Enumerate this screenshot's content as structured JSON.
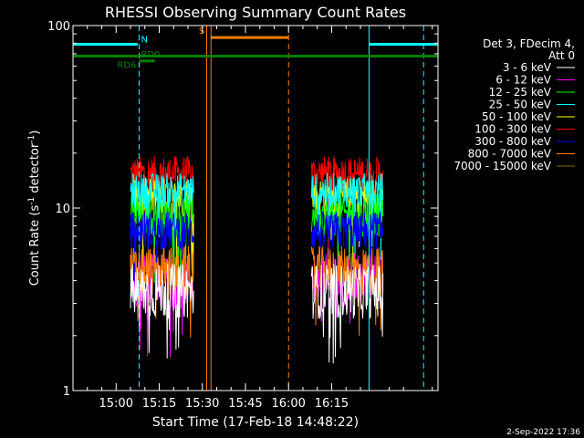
{
  "chart_data": {
    "type": "line",
    "title": "RHESSI Observing Summary Count Rates",
    "xlabel": "Start Time (17-Feb-18 14:48:22)",
    "ylabel_main": "Count Rate (s",
    "ylabel_sup1": "-1",
    "ylabel_mid": " detector",
    "ylabel_sup2": "-1",
    "ylabel_end": ")",
    "y_scale": "log",
    "ylim": [
      1,
      100
    ],
    "xlim_minutes": [
      -15,
      112
    ],
    "x_tick_labels": [
      "15:00",
      "15:15",
      "15:30",
      "15:45",
      "16:00",
      "16:15"
    ],
    "x_tick_minutes": [
      0,
      15,
      30,
      45,
      60,
      75
    ],
    "y_tick_labels": [
      "1",
      "10",
      "100"
    ],
    "y_tick_values": [
      1,
      10,
      100
    ],
    "legend_header": [
      "Det 3, FDecim 4,",
      "Att 0"
    ],
    "legend": [
      {
        "label": "3 - 6 keV",
        "color": "#ffffff"
      },
      {
        "label": "6 - 12 keV",
        "color": "#ff00ff"
      },
      {
        "label": "12 - 25 keV",
        "color": "#00ff00"
      },
      {
        "label": "25 - 50 keV",
        "color": "#00ffff"
      },
      {
        "label": "50 - 100 keV",
        "color": "#ffff00"
      },
      {
        "label": "100 - 300 keV",
        "color": "#ff0000"
      },
      {
        "label": "300 - 800 keV",
        "color": "#0000ff"
      },
      {
        "label": "800 - 7000 keV",
        "color": "#ff8000"
      },
      {
        "label": "7000 - 15000 keV",
        "color": "#8b6914"
      }
    ],
    "series": [
      {
        "color": "#ff0000",
        "segments": [
          [
            5,
            27,
            15.5
          ],
          [
            68,
            93,
            15.5
          ]
        ],
        "spread": 0.22
      },
      {
        "color": "#ffff00",
        "segments": [
          [
            5,
            27,
            11.5
          ],
          [
            68,
            93,
            11.5
          ]
        ],
        "spread": 0.25
      },
      {
        "color": "#00ff00",
        "segments": [
          [
            5,
            27,
            9.2
          ],
          [
            68,
            93,
            9.2
          ]
        ],
        "spread": 0.28
      },
      {
        "color": "#00ffff",
        "segments": [
          [
            5,
            27,
            12.5
          ],
          [
            68,
            93,
            12.5
          ]
        ],
        "spread": 0.22
      },
      {
        "color": "#0000ff",
        "segments": [
          [
            5,
            27,
            7.5
          ],
          [
            68,
            93,
            7.5
          ]
        ],
        "spread": 0.25
      },
      {
        "color": "#ff00ff",
        "segments": [
          [
            5,
            27,
            4.0
          ],
          [
            68,
            93,
            4.0
          ]
        ],
        "spread": 0.35
      },
      {
        "color": "#ff8000",
        "segments": [
          [
            5,
            27,
            4.5
          ],
          [
            68,
            93,
            4.5
          ]
        ],
        "spread": 0.32
      },
      {
        "color": "#ffffff",
        "segments": [
          [
            5,
            27,
            3.5
          ],
          [
            68,
            93,
            3.5
          ]
        ],
        "spread": 0.35
      }
    ],
    "flag_bars": [
      {
        "label": "",
        "color": "#00ffff",
        "start": -15,
        "end": 7.5,
        "level": 79
      },
      {
        "label": "",
        "color": "#00ffff",
        "start": 88,
        "end": 112,
        "level": 79
      },
      {
        "label": "N",
        "color": "#00ffff",
        "start": 8,
        "end": 8,
        "level": 79
      },
      {
        "label": "S",
        "color": "#ff8000",
        "start": 33,
        "end": 60,
        "level": 86
      },
      {
        "label": "RD0",
        "color": "#008000",
        "start": 8,
        "end": 13.5,
        "level": 64
      },
      {
        "label": "RD6",
        "color": "#008000",
        "start": -15,
        "end": 112,
        "level": 68
      }
    ],
    "vertical_lines": [
      {
        "minute": -15,
        "color": "#00ffff",
        "style": "solid"
      },
      {
        "minute": 8,
        "color": "#00ffff",
        "style": "dashed"
      },
      {
        "minute": 33,
        "color": "#ff8000",
        "style": "solid"
      },
      {
        "minute": 31.5,
        "color": "#ff8000",
        "style": "solid"
      },
      {
        "minute": 60,
        "color": "#ff8000",
        "style": "dashed"
      },
      {
        "minute": 88,
        "color": "#00ffff",
        "style": "solid"
      },
      {
        "minute": 107,
        "color": "#00ffff",
        "style": "dashed"
      }
    ]
  },
  "footer": {
    "timestamp": "2-Sep-2022 17:36"
  }
}
